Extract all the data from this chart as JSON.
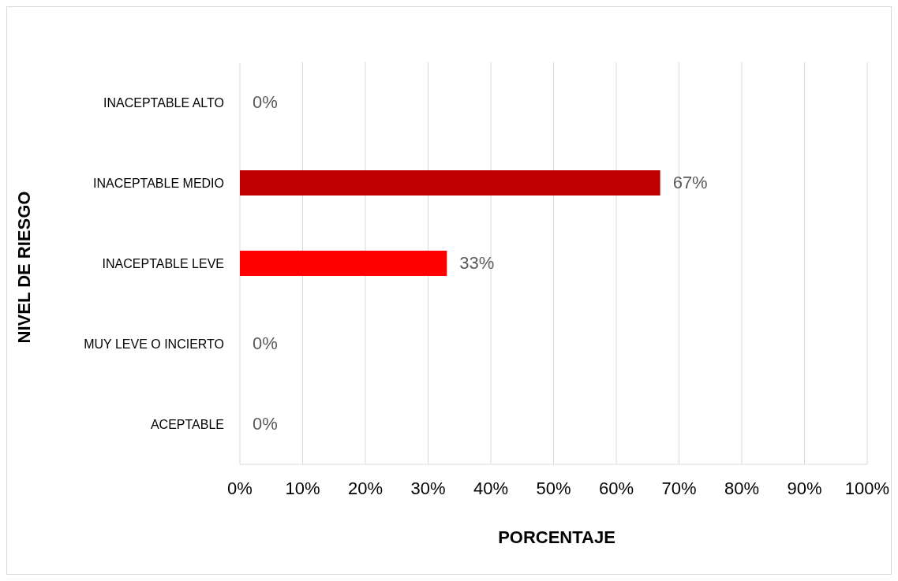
{
  "chart_data": {
    "type": "bar",
    "orientation": "horizontal",
    "xlabel": "PORCENTAJE",
    "ylabel": "NIVEL DE RIESGO",
    "categories": [
      "INACEPTABLE ALTO",
      "INACEPTABLE MEDIO",
      "INACEPTABLE LEVE",
      "MUY LEVE O INCIERTO",
      "ACEPTABLE"
    ],
    "values": [
      0,
      67,
      33,
      0,
      0
    ],
    "colors": [
      "#c00000",
      "#c00000",
      "#ff0000",
      "#ff0000",
      "#ff0000"
    ],
    "value_labels": [
      "0%",
      "67%",
      "33%",
      "0%",
      "0%"
    ],
    "xlim": [
      0,
      100
    ],
    "xticks": [
      {
        "value": 0,
        "label": "0%"
      },
      {
        "value": 10,
        "label": "10%"
      },
      {
        "value": 20,
        "label": "20%"
      },
      {
        "value": 30,
        "label": "30%"
      },
      {
        "value": 40,
        "label": "40%"
      },
      {
        "value": 50,
        "label": "50%"
      },
      {
        "value": 60,
        "label": "60%"
      },
      {
        "value": 70,
        "label": "70%"
      },
      {
        "value": 80,
        "label": "80%"
      },
      {
        "value": 90,
        "label": "90%"
      },
      {
        "value": 100,
        "label": "100%"
      }
    ],
    "grid": "x",
    "legend": false
  }
}
